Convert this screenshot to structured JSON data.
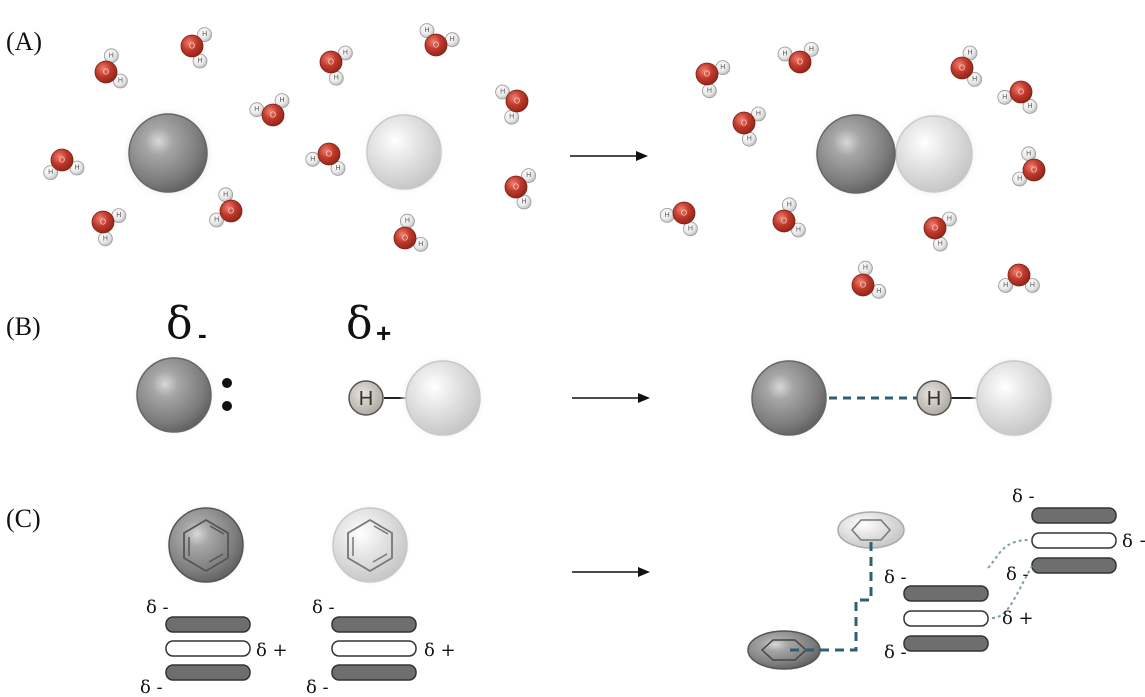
{
  "panels": [
    {
      "label": "(A)"
    },
    {
      "label": "(B)"
    },
    {
      "label": "(C)"
    }
  ],
  "atoms": {
    "oxygen": "O",
    "hydrogen": "H"
  },
  "symbols": {
    "delta_minus": "δ -",
    "delta_plus": "δ +",
    "delta": "δ",
    "minus": "-",
    "plus": "+",
    "small_minus": "₋",
    "small_plus": "₊"
  },
  "colors": {
    "dark_sphere": "#8a8a8a",
    "light_sphere": "#dcdcdc",
    "oxygen": "#c0392b",
    "hydrogen": "#e6e6e6",
    "bond_dash": "#2e5f73",
    "stack_bar": "#6e6e6e"
  }
}
